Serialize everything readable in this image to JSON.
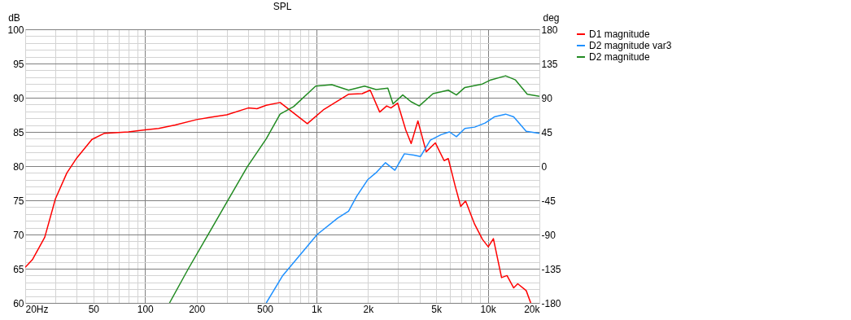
{
  "chart_data": {
    "type": "line",
    "title": "SPL",
    "ylabel": "dB",
    "y2label": "deg",
    "xlim": [
      20,
      20000
    ],
    "ylim": [
      60,
      100
    ],
    "y2lim": [
      -180,
      180
    ],
    "log": "x",
    "grid": true,
    "legend": "right",
    "xticks": [
      {
        "value": 20,
        "label": "20Hz"
      },
      {
        "value": 30,
        "label": null
      },
      {
        "value": 40,
        "label": null
      },
      50,
      {
        "value": 60,
        "label": null
      },
      {
        "value": 70,
        "label": null
      },
      {
        "value": 80,
        "label": null
      },
      {
        "value": 90,
        "label": null
      },
      100,
      200,
      {
        "value": 300,
        "label": null
      },
      {
        "value": 400,
        "label": null
      },
      500,
      {
        "value": 600,
        "label": null
      },
      {
        "value": 700,
        "label": null
      },
      {
        "value": 800,
        "label": null
      },
      {
        "value": 900,
        "label": null
      },
      {
        "value": 1000,
        "label": "1k"
      },
      {
        "value": 2000,
        "label": "2k"
      },
      {
        "value": 3000,
        "label": null
      },
      {
        "value": 4000,
        "label": null
      },
      {
        "value": 5000,
        "label": "5k"
      },
      {
        "value": 6000,
        "label": null
      },
      {
        "value": 7000,
        "label": null
      },
      {
        "value": 8000,
        "label": null
      },
      {
        "value": 9000,
        "label": null
      },
      {
        "value": 10000,
        "label": "10k"
      },
      {
        "value": 20000,
        "label": "20k"
      }
    ],
    "yticks": [
      60,
      {
        "value": 61,
        "label": null
      },
      {
        "value": 62,
        "label": null
      },
      {
        "value": 63,
        "label": null
      },
      {
        "value": 64,
        "label": null
      },
      65,
      {
        "value": 66,
        "label": null
      },
      {
        "value": 67,
        "label": null
      },
      {
        "value": 68,
        "label": null
      },
      {
        "value": 69,
        "label": null
      },
      70,
      {
        "value": 71,
        "label": null
      },
      {
        "value": 72,
        "label": null
      },
      {
        "value": 73,
        "label": null
      },
      {
        "value": 74,
        "label": null
      },
      75,
      {
        "value": 76,
        "label": null
      },
      {
        "value": 77,
        "label": null
      },
      {
        "value": 78,
        "label": null
      },
      {
        "value": 79,
        "label": null
      },
      80,
      {
        "value": 81,
        "label": null
      },
      {
        "value": 82,
        "label": null
      },
      {
        "value": 83,
        "label": null
      },
      {
        "value": 84,
        "label": null
      },
      85,
      {
        "value": 86,
        "label": null
      },
      {
        "value": 87,
        "label": null
      },
      {
        "value": 88,
        "label": null
      },
      {
        "value": 89,
        "label": null
      },
      90,
      {
        "value": 91,
        "label": null
      },
      {
        "value": 92,
        "label": null
      },
      {
        "value": 93,
        "label": null
      },
      {
        "value": 94,
        "label": null
      },
      95,
      {
        "value": 96,
        "label": null
      },
      {
        "value": 97,
        "label": null
      },
      {
        "value": 98,
        "label": null
      },
      {
        "value": 99,
        "label": null
      },
      100
    ],
    "y2ticks": [
      -180,
      -135,
      -90,
      -45,
      0,
      45,
      90,
      135,
      180
    ],
    "series": [
      {
        "name": "D1 magnitude",
        "color": "#ff0000",
        "x": [
          20,
          22,
          26,
          30,
          35,
          40,
          49,
          58,
          80,
          100,
          120,
          150,
          200,
          250,
          300,
          400,
          450,
          510,
          614,
          885,
          1107,
          1537,
          1850,
          2060,
          2340,
          2570,
          2720,
          2980,
          3320,
          3570,
          3910,
          4370,
          4940,
          5560,
          5880,
          6450,
          6950,
          7420,
          8380,
          9300,
          10060,
          10780,
          12030,
          12940,
          14160,
          14950,
          16750,
          17800
        ],
        "values": [
          65.2,
          66.3,
          69.6,
          75.2,
          79,
          81.2,
          83.9,
          84.8,
          85.0,
          85.3,
          85.5,
          86.0,
          86.8,
          87.2,
          87.5,
          88.5,
          88.4,
          88.9,
          89.3,
          86.2,
          88.3,
          90.5,
          90.6,
          91.1,
          87.9,
          88.8,
          88.5,
          89.2,
          85.3,
          83.3,
          86.6,
          82.1,
          83.4,
          80.8,
          81.1,
          77.1,
          74.1,
          74.9,
          71.5,
          69.3,
          68.2,
          69.4,
          63.7,
          64.0,
          62.2,
          62.8,
          61.8,
          60
        ]
      },
      {
        "name": "D2 magnitude var3",
        "color": "#1e90ff",
        "x": [
          510,
          636,
          1010,
          1330,
          1540,
          1720,
          1990,
          2220,
          2530,
          2870,
          3260,
          3700,
          4050,
          4620,
          5340,
          5970,
          6560,
          7350,
          8380,
          9640,
          10910,
          12700,
          14160,
          16750,
          20000
        ],
        "values": [
          60,
          64.0,
          70.0,
          72.4,
          73.4,
          75.6,
          78.0,
          79.0,
          80.5,
          79.4,
          81.8,
          81.6,
          81.4,
          83.8,
          84.6,
          85.0,
          84.3,
          85.5,
          85.7,
          86.3,
          87.2,
          87.6,
          87.2,
          85.1,
          84.8
        ]
      },
      {
        "name": "D2 magnitude",
        "color": "#228b22",
        "x": [
          139,
          179,
          395,
          510,
          614,
          737,
          990,
          1230,
          1540,
          1910,
          2230,
          2610,
          2800,
          3190,
          3570,
          3980,
          4790,
          5880,
          6560,
          7350,
          9300,
          10400,
          12700,
          14500,
          17000,
          20000
        ],
        "values": [
          60,
          65.0,
          79.9,
          84.0,
          87.6,
          88.7,
          91.7,
          91.9,
          91.1,
          91.7,
          91.2,
          91.4,
          89.1,
          90.4,
          89.4,
          88.8,
          90.6,
          91.1,
          90.4,
          91.5,
          92.0,
          92.6,
          93.2,
          92.6,
          90.5,
          90.2
        ]
      }
    ]
  }
}
